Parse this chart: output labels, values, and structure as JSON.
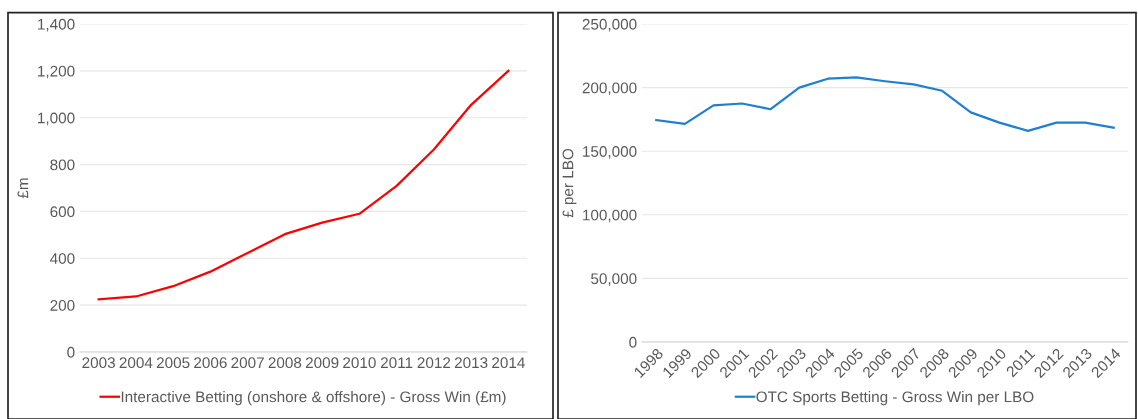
{
  "chart_data": [
    {
      "type": "line",
      "ylabel": "£m",
      "categories": [
        "2003",
        "2004",
        "2005",
        "2006",
        "2007",
        "2008",
        "2009",
        "2010",
        "2011",
        "2012",
        "2013",
        "2014"
      ],
      "series": [
        {
          "name": "Interactive Betting (onshore & offshore) - Gross Win (£m)",
          "color": "#ff0000",
          "values": [
            225,
            237,
            281,
            343,
            423,
            503,
            552,
            590,
            709,
            864,
            1055,
            1200
          ]
        }
      ],
      "ylim": [
        0,
        1400
      ],
      "yticks": [
        {
          "value": 0,
          "label": "0"
        },
        {
          "value": 200,
          "label": "200"
        },
        {
          "value": 400,
          "label": "400"
        },
        {
          "value": 600,
          "label": "600"
        },
        {
          "value": 800,
          "label": "800"
        },
        {
          "value": 1000,
          "label": "1,000"
        },
        {
          "value": 1200,
          "label": "1,200"
        },
        {
          "value": 1400,
          "label": "1,400"
        }
      ],
      "grid": "y",
      "legend": "bottom",
      "marker": "none",
      "line_style": "solid"
    },
    {
      "type": "line",
      "ylabel": "£ per LBO",
      "categories": [
        "1998",
        "1999",
        "2000",
        "2001",
        "2002",
        "2003",
        "2004",
        "2005",
        "2006",
        "2007",
        "2008",
        "2009",
        "2010",
        "2011",
        "2012",
        "2013",
        "2014"
      ],
      "series": [
        {
          "name": "OTC Sports Betting - Gross Win per LBO",
          "color": "#1f7fd1",
          "values": [
            174500,
            171500,
            186000,
            187500,
            183000,
            200000,
            207000,
            208000,
            205000,
            202500,
            197500,
            180500,
            172500,
            166000,
            172500,
            172500,
            168500
          ]
        }
      ],
      "ylim": [
        0,
        250000
      ],
      "yticks": [
        {
          "value": 0,
          "label": "0"
        },
        {
          "value": 50000,
          "label": "50,000"
        },
        {
          "value": 100000,
          "label": "100,000"
        },
        {
          "value": 150000,
          "label": "150,000"
        },
        {
          "value": 200000,
          "label": "200,000"
        },
        {
          "value": 250000,
          "label": "250,000"
        }
      ],
      "grid": "y",
      "legend": "bottom",
      "marker": "none",
      "line_style": "solid"
    }
  ]
}
